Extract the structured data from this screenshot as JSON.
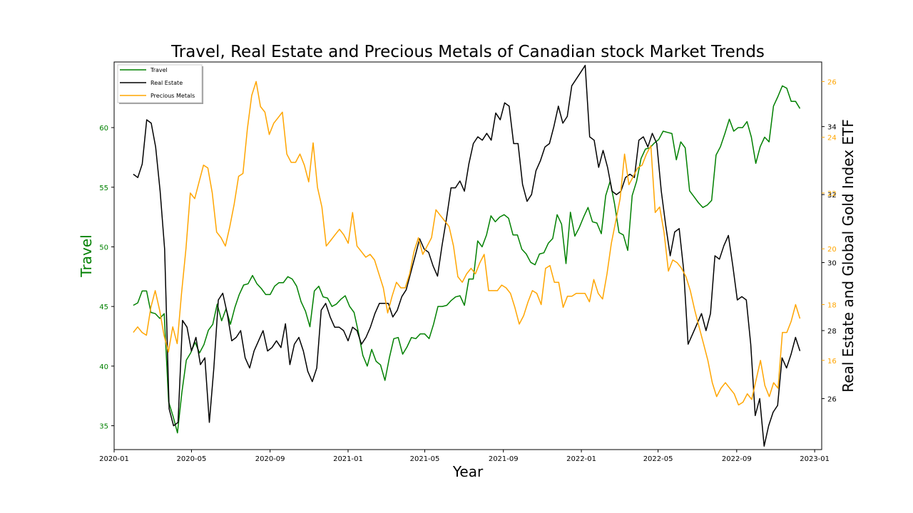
{
  "chart_data": {
    "type": "line",
    "title": "Travel, Real Estate and Precious Metals of Canadian stock Market Trends",
    "xlabel": "Year",
    "ylabel_left": "Travel",
    "ylabel_right": "Real Estate and Global Gold Index ETF",
    "xlim": [
      "2020-01-01",
      "2023-01-12"
    ],
    "x_ticks": [
      "2020-01",
      "2020-05",
      "2020-09",
      "2021-01",
      "2021-05",
      "2021-09",
      "2022-01",
      "2022-05",
      "2022-09",
      "2023-01"
    ],
    "x_start": "2020-01-31",
    "x_end": "2022-12-09",
    "legend_position": "upper-left",
    "axes": {
      "left": {
        "ylim": [
          33,
          65.5
        ],
        "ticks": [
          35,
          40,
          45,
          50,
          55,
          60
        ],
        "color": "#008000"
      },
      "right_real_estate": {
        "ylim": [
          24.5,
          35.9
        ],
        "ticks": [
          26,
          28,
          30,
          32,
          34
        ],
        "color": "#000000"
      },
      "right_precious_metals": {
        "ylim": [
          12.8,
          26.7
        ],
        "ticks": [
          16,
          18,
          20,
          22,
          24,
          26
        ],
        "color": "#FFA500"
      }
    },
    "series": [
      {
        "name": "Travel",
        "axis": "left",
        "color": "#008000",
        "values": [
          45.1,
          45.3,
          46.3,
          46.3,
          44.5,
          44.4,
          44.0,
          44.4,
          37.0,
          35.8,
          34.4,
          37.8,
          40.5,
          41.1,
          42.0,
          41.1,
          41.8,
          43.0,
          43.5,
          45.2,
          43.8,
          44.8,
          43.5,
          44.9,
          46.0,
          46.8,
          46.9,
          47.6,
          46.9,
          46.5,
          46.0,
          46.0,
          46.7,
          47.0,
          47.0,
          47.5,
          47.3,
          46.7,
          45.4,
          44.6,
          43.3,
          46.3,
          46.7,
          45.8,
          45.7,
          45.0,
          45.2,
          45.6,
          45.9,
          45.0,
          44.5,
          42.8,
          40.9,
          40.0,
          41.4,
          40.4,
          40.1,
          38.8,
          40.7,
          42.3,
          42.4,
          41.0,
          41.6,
          42.4,
          42.3,
          42.7,
          42.7,
          42.3,
          43.5,
          45.0,
          45.0,
          45.1,
          45.5,
          45.8,
          45.9,
          45.1,
          47.3,
          47.3,
          50.5,
          50.0,
          51.0,
          52.6,
          52.1,
          52.5,
          52.7,
          52.4,
          51.0,
          51.0,
          49.8,
          49.4,
          48.7,
          48.5,
          49.4,
          49.5,
          50.3,
          50.7,
          52.7,
          51.9,
          48.6,
          52.9,
          50.9,
          51.6,
          52.5,
          53.3,
          52.1,
          52.0,
          51.1,
          54.3,
          55.5,
          53.6,
          51.2,
          51.0,
          49.7,
          54.3,
          55.5,
          57.4,
          58.2,
          58.3,
          58.7,
          59.0,
          59.7,
          59.6,
          59.5,
          57.3,
          58.8,
          58.3,
          54.7,
          54.2,
          53.7,
          53.3,
          53.5,
          53.9,
          57.7,
          58.4,
          59.5,
          60.7,
          59.7,
          60.0,
          60.0,
          60.5,
          59.2,
          57.0,
          58.4,
          59.2,
          58.8,
          61.8,
          62.6,
          63.5,
          63.3,
          62.2,
          62.2,
          61.6
        ]
      },
      {
        "name": "Real Estate",
        "axis": "right_real_estate",
        "color": "#000000",
        "values": [
          32.6,
          32.5,
          32.9,
          34.2,
          34.1,
          33.4,
          32.1,
          30.4,
          25.7,
          25.2,
          25.3,
          28.3,
          28.1,
          27.4,
          27.8,
          27.0,
          27.2,
          25.3,
          26.9,
          28.9,
          29.1,
          28.5,
          27.7,
          27.8,
          28.0,
          27.2,
          26.9,
          27.4,
          27.7,
          28.0,
          27.4,
          27.5,
          27.7,
          27.5,
          28.2,
          27.0,
          27.6,
          27.8,
          27.4,
          26.8,
          26.5,
          26.9,
          28.6,
          28.8,
          28.4,
          28.1,
          28.1,
          28.0,
          27.7,
          28.1,
          28.0,
          27.6,
          27.8,
          28.1,
          28.5,
          28.8,
          28.8,
          28.8,
          28.4,
          28.6,
          29.0,
          29.2,
          29.7,
          30.2,
          30.7,
          30.4,
          30.3,
          29.9,
          29.6,
          30.5,
          31.3,
          32.2,
          32.2,
          32.4,
          32.1,
          32.9,
          33.5,
          33.7,
          33.6,
          33.8,
          33.6,
          34.4,
          34.2,
          34.7,
          34.6,
          33.5,
          33.5,
          32.3,
          31.8,
          32.0,
          32.7,
          33.0,
          33.4,
          33.5,
          34.0,
          34.6,
          34.1,
          34.3,
          35.2,
          35.4,
          35.6,
          35.8,
          33.7,
          33.6,
          32.8,
          33.3,
          32.8,
          32.1,
          32.0,
          32.1,
          32.5,
          32.6,
          32.5,
          33.6,
          33.7,
          33.4,
          33.8,
          33.5,
          32.1,
          31.1,
          30.2,
          30.9,
          31.0,
          29.8,
          27.6,
          27.9,
          28.2,
          28.5,
          28.0,
          28.5,
          30.2,
          30.1,
          30.5,
          30.8,
          29.9,
          28.9,
          29.0,
          28.9,
          27.6,
          25.5,
          26.0,
          24.6,
          25.2,
          25.6,
          25.8,
          27.2,
          26.9,
          27.3,
          27.8,
          27.4
        ]
      },
      {
        "name": "Precious Metals",
        "axis": "right_precious_metals",
        "color": "#FFA500",
        "values": [
          17.0,
          17.2,
          17.0,
          16.9,
          17.9,
          18.5,
          17.8,
          16.9,
          16.3,
          17.2,
          16.6,
          18.4,
          20.0,
          22.0,
          21.8,
          22.4,
          23.0,
          22.9,
          22.0,
          20.6,
          20.4,
          20.1,
          20.8,
          21.6,
          22.6,
          22.7,
          24.3,
          25.5,
          26.0,
          25.1,
          24.9,
          24.1,
          24.5,
          24.7,
          24.9,
          23.4,
          23.1,
          23.1,
          23.4,
          23.0,
          22.4,
          23.8,
          22.2,
          21.5,
          20.1,
          20.3,
          20.5,
          20.7,
          20.5,
          20.2,
          21.3,
          20.1,
          19.9,
          19.7,
          19.8,
          19.6,
          19.1,
          18.6,
          17.7,
          18.3,
          18.8,
          18.6,
          18.6,
          19.1,
          19.9,
          20.4,
          19.8,
          20.1,
          20.4,
          21.4,
          21.2,
          21.0,
          20.8,
          20.1,
          19.0,
          18.8,
          19.1,
          19.3,
          19.1,
          19.5,
          19.8,
          18.5,
          18.5,
          18.5,
          18.7,
          18.6,
          18.4,
          17.9,
          17.3,
          17.6,
          18.1,
          18.5,
          18.4,
          18.0,
          19.3,
          19.4,
          18.8,
          18.8,
          17.9,
          18.3,
          18.3,
          18.4,
          18.4,
          18.4,
          18.1,
          18.9,
          18.4,
          18.2,
          19.1,
          20.2,
          21.0,
          21.8,
          23.4,
          22.3,
          22.6,
          22.9,
          23.0,
          23.4,
          23.7,
          21.3,
          21.5,
          20.6,
          19.2,
          19.6,
          19.5,
          19.3,
          19.0,
          18.5,
          17.8,
          17.2,
          16.6,
          16.0,
          15.2,
          14.7,
          15.0,
          15.2,
          15.0,
          14.8,
          14.4,
          14.5,
          14.8,
          14.6,
          15.3,
          16.0,
          15.1,
          14.7,
          15.2,
          15.0,
          17.0,
          17.0,
          17.4,
          18.0,
          17.5
        ]
      }
    ]
  }
}
